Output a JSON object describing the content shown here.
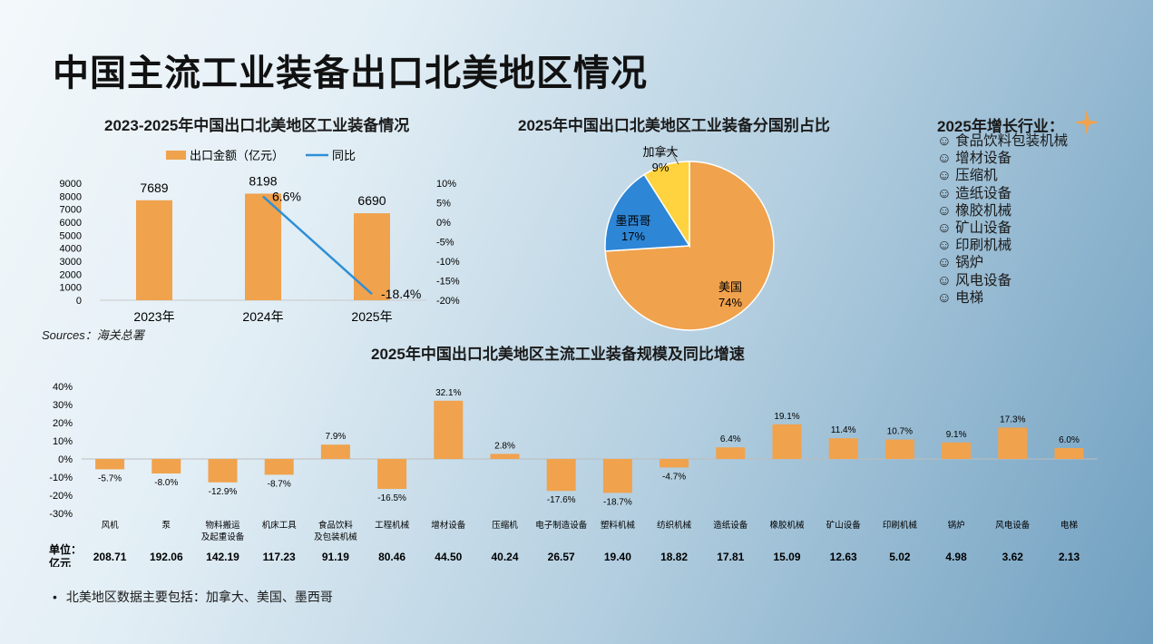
{
  "title": "中国主流工业装备出口北美地区情况",
  "sources": "Sources：海关总署",
  "growth_panel": {
    "title": "2025年增长行业：",
    "bullet": "☺",
    "items": [
      "食品饮料包装机械",
      "增材设备",
      "压缩机",
      "造纸设备",
      "橡胶机械",
      "矿山设备",
      "印刷机械",
      "锅炉",
      "风电设备",
      "电梯"
    ]
  },
  "footnote": {
    "bullet": "•",
    "text": "北美地区数据主要包括：加拿大、美国、墨西哥"
  },
  "colors": {
    "bar": "#F0A24D",
    "line": "#2E8FD6",
    "pie_us": "#F0A24D",
    "pie_mx": "#2E86D6",
    "pie_ca": "#FFD23F",
    "star": "#F0A24D"
  },
  "chart_data": [
    {
      "type": "bar",
      "title": "2023-2025年中国出口北美地区工业装备情况",
      "categories": [
        "2023年",
        "2024年",
        "2025年"
      ],
      "legend": [
        "出口金额（亿元）",
        "同比"
      ],
      "series": [
        {
          "name": "出口金额（亿元）",
          "type": "bar",
          "values": [
            7689,
            8198,
            6690
          ],
          "labels": [
            "7689",
            "8198",
            "6690"
          ]
        },
        {
          "name": "同比",
          "type": "line",
          "axis": "right",
          "values": [
            null,
            6.6,
            -18.4
          ],
          "labels": [
            "",
            "6.6%",
            "-18.4%"
          ]
        }
      ],
      "ylim": [
        0,
        9000
      ],
      "yticks": [
        "0",
        "1000",
        "2000",
        "3000",
        "4000",
        "5000",
        "6000",
        "7000",
        "8000",
        "9000"
      ],
      "y2lim": [
        -20,
        10
      ],
      "y2ticks": [
        "-20%",
        "-15%",
        "-10%",
        "-5%",
        "0%",
        "5%",
        "10%"
      ]
    },
    {
      "type": "pie",
      "title": "2025年中国出口北美地区工业装备分国别占比",
      "slices": [
        {
          "name": "美国",
          "value": 74,
          "label": "74%"
        },
        {
          "name": "墨西哥",
          "value": 17,
          "label": "17%"
        },
        {
          "name": "加拿大",
          "value": 9,
          "label": "9%"
        }
      ]
    },
    {
      "type": "bar",
      "title": "2025年中国出口北美地区主流工业装备规模及同比增速",
      "categories": [
        [
          "风机"
        ],
        [
          "泵"
        ],
        [
          "物料搬运",
          "及起重设备"
        ],
        [
          "机床工具"
        ],
        [
          "食品饮料",
          "及包装机械"
        ],
        [
          "工程机械"
        ],
        [
          "增材设备"
        ],
        [
          "压缩机"
        ],
        [
          "电子制造设备"
        ],
        [
          "塑料机械"
        ],
        [
          "纺织机械"
        ],
        [
          "造纸设备"
        ],
        [
          "橡胶机械"
        ],
        [
          "矿山设备"
        ],
        [
          "印刷机械"
        ],
        [
          "锅炉"
        ],
        [
          "风电设备"
        ],
        [
          "电梯"
        ]
      ],
      "values": [
        -5.7,
        -8.0,
        -12.9,
        -8.7,
        7.9,
        -16.5,
        32.1,
        2.8,
        -17.6,
        -18.7,
        -4.7,
        6.4,
        19.1,
        11.4,
        10.7,
        9.1,
        17.3,
        6.0
      ],
      "value_labels": [
        "-5.7%",
        "-8.0%",
        "-12.9%",
        "-8.7%",
        "7.9%",
        "-16.5%",
        "32.1%",
        "2.8%",
        "-17.6%",
        "-18.7%",
        "-4.7%",
        "6.4%",
        "19.1%",
        "11.4%",
        "10.7%",
        "9.1%",
        "17.3%",
        "6.0%"
      ],
      "ylim": [
        -30,
        40
      ],
      "yticks": [
        "-30%",
        "-20%",
        "-10%",
        "0%",
        "10%",
        "20%",
        "30%",
        "40%"
      ],
      "unit_label": [
        "单位：",
        "亿元"
      ],
      "amounts": [
        "208.71",
        "192.06",
        "142.19",
        "117.23",
        "91.19",
        "80.46",
        "44.50",
        "40.24",
        "26.57",
        "19.40",
        "18.82",
        "17.81",
        "15.09",
        "12.63",
        "5.02",
        "4.98",
        "3.62",
        "2.13"
      ]
    }
  ]
}
